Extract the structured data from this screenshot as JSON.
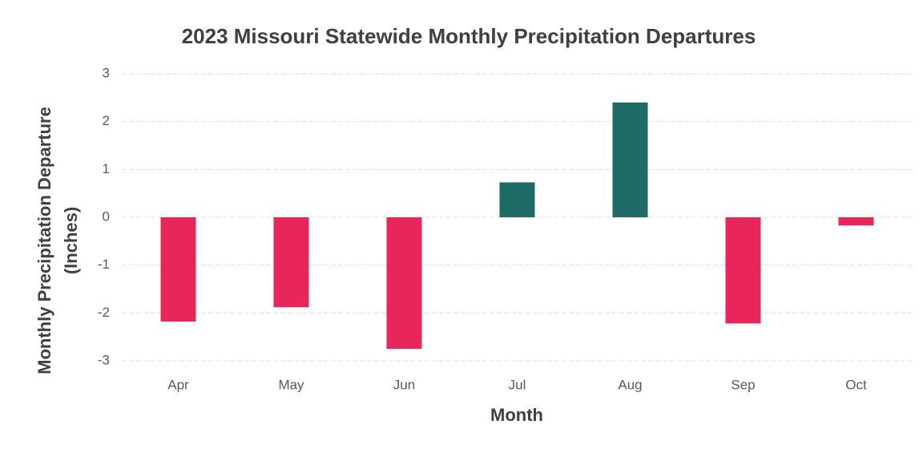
{
  "chart_data": {
    "type": "bar",
    "title": "2023 Missouri Statewide Monthly Precipitation Departures",
    "x_label": "Month",
    "y_label": [
      "Monthly Precipitation Departure",
      "(Inches)"
    ],
    "categories": [
      "Apr",
      "May",
      "Jun",
      "Jul",
      "Aug",
      "Sep",
      "Oct"
    ],
    "values": [
      -2.18,
      -1.88,
      -2.75,
      0.73,
      2.4,
      -2.22,
      -0.17
    ],
    "colors": [
      "#e8265a",
      "#e8265a",
      "#e8265a",
      "#1e6b66",
      "#1e6b66",
      "#e8265a",
      "#e8265a"
    ],
    "ylim": [
      -3,
      3
    ],
    "yticks": [
      -3,
      -2,
      -1,
      0,
      1,
      2,
      3
    ],
    "grid": true
  }
}
